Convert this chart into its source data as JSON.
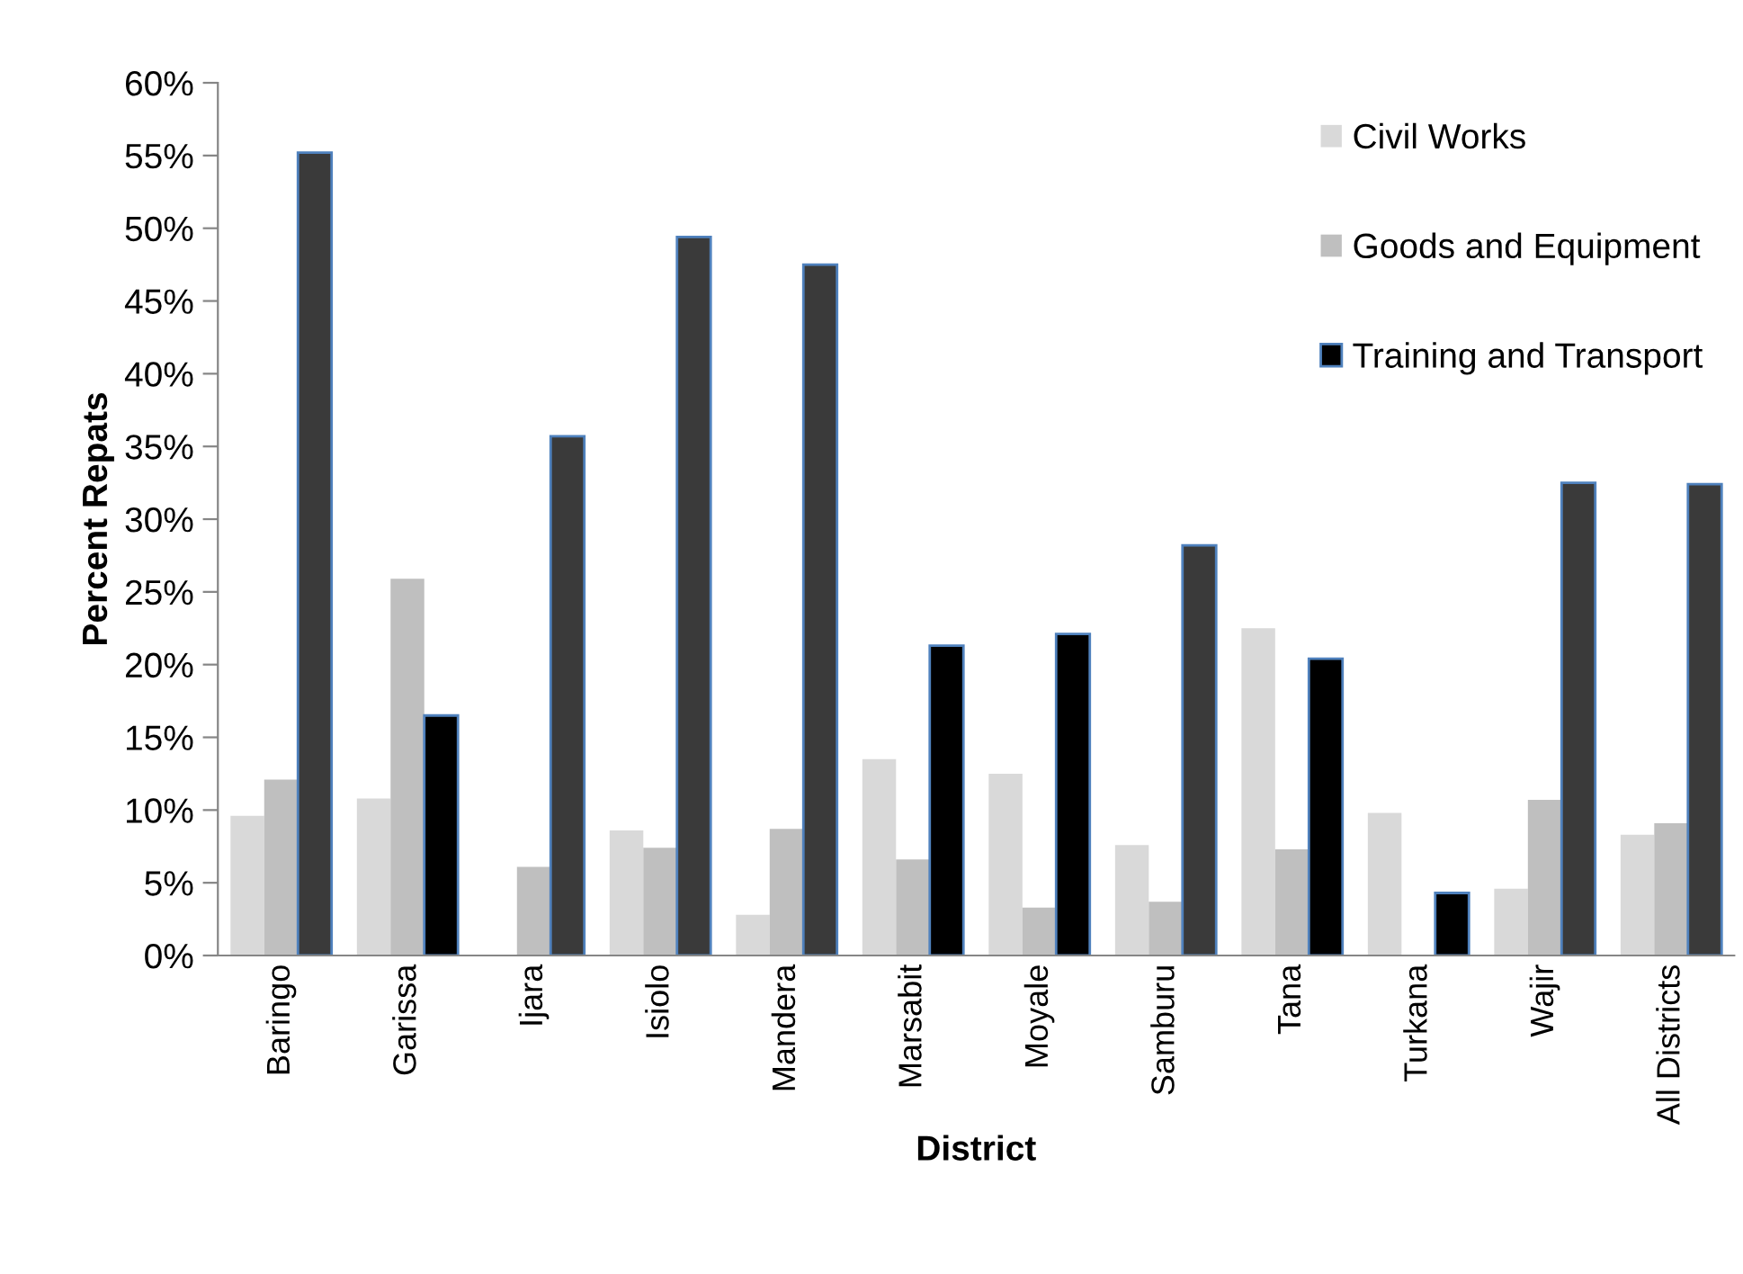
{
  "chart_data": {
    "type": "bar",
    "xlabel": "District",
    "ylabel": "Percent Repats",
    "categories": [
      "Baringo",
      "Garissa",
      "Ijara",
      "Isiolo",
      "Mandera",
      "Marsabit",
      "Moyale",
      "Samburu",
      "Tana",
      "Turkana",
      "Wajir",
      "All Districts"
    ],
    "series": [
      {
        "name": "Civil Works",
        "color": "#d9d9d9",
        "values": [
          9.6,
          10.8,
          0,
          8.6,
          2.8,
          13.5,
          12.5,
          7.6,
          22.5,
          9.8,
          4.6,
          8.3
        ]
      },
      {
        "name": "Goods and Equipment",
        "color": "#bfbfbf",
        "values": [
          12.1,
          25.9,
          6.1,
          7.4,
          8.7,
          6.6,
          3.3,
          3.7,
          7.3,
          0,
          10.7,
          9.1
        ]
      },
      {
        "name": "Training and Transport",
        "color": "#000000",
        "colors": [
          "#3a3a3a",
          "#000000",
          "#3a3a3a",
          "#3a3a3a",
          "#3a3a3a",
          "#000000",
          "#000000",
          "#3a3a3a",
          "#000000",
          "#000000",
          "#3a3a3a",
          "#3a3a3a"
        ],
        "values": [
          55.2,
          16.5,
          35.7,
          49.4,
          47.5,
          21.3,
          22.1,
          28.2,
          20.4,
          4.3,
          32.5,
          32.4
        ]
      }
    ],
    "ylim": [
      0,
      60
    ],
    "yticks": [
      {
        "value": 0,
        "label": "0%"
      },
      {
        "value": 5,
        "label": "5%"
      },
      {
        "value": 10,
        "label": "10%"
      },
      {
        "value": 15,
        "label": "15%"
      },
      {
        "value": 20,
        "label": "20%"
      },
      {
        "value": 25,
        "label": "25%"
      },
      {
        "value": 30,
        "label": "30%"
      },
      {
        "value": 35,
        "label": "35%"
      },
      {
        "value": 40,
        "label": "40%"
      },
      {
        "value": 45,
        "label": "45%"
      },
      {
        "value": 50,
        "label": "50%"
      },
      {
        "value": 55,
        "label": "55%"
      },
      {
        "value": 60,
        "label": "60%"
      }
    ],
    "legend": "top right",
    "grid": false
  }
}
